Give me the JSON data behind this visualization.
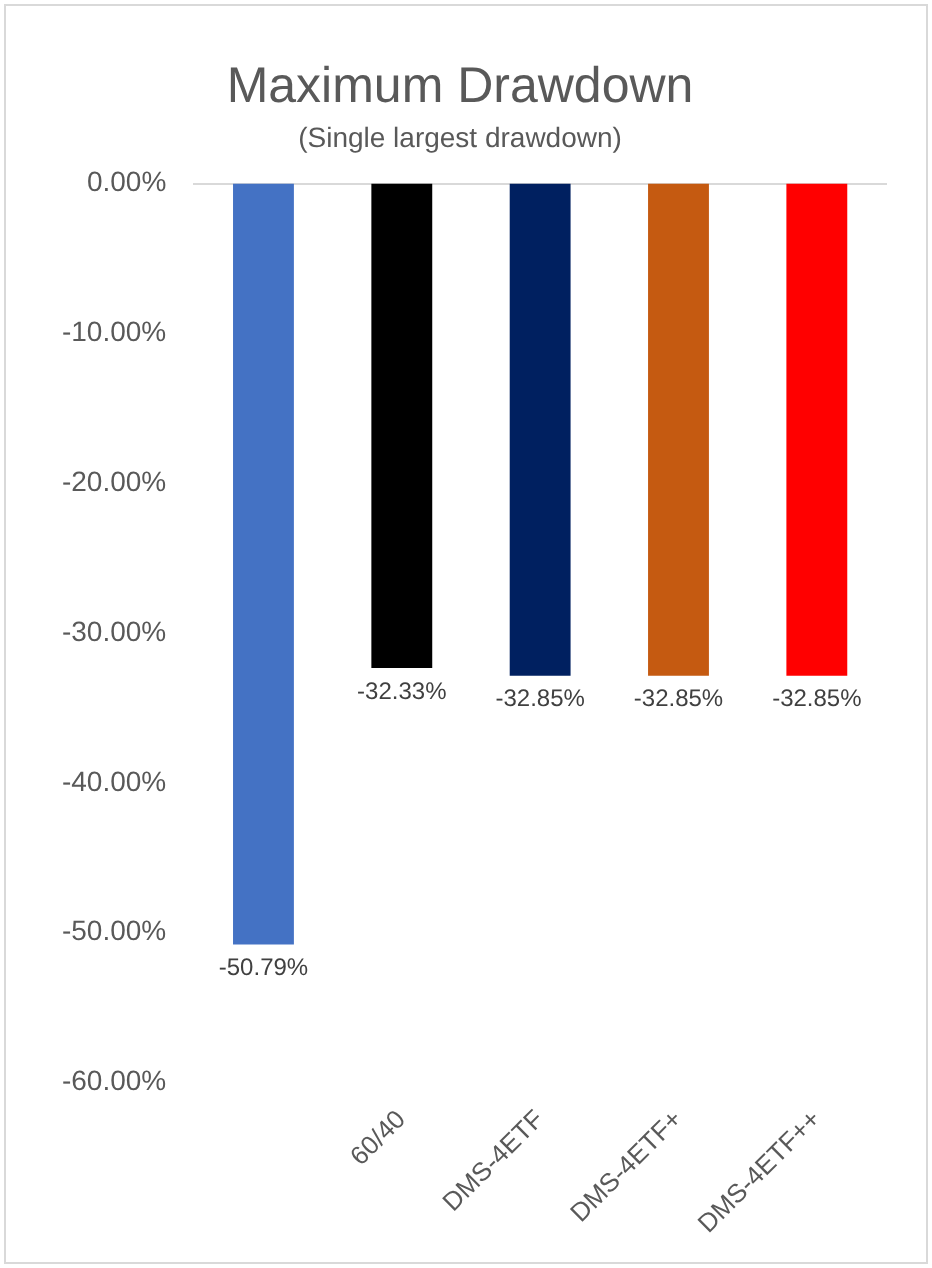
{
  "chart_data": {
    "type": "bar",
    "title": "Maximum Drawdown",
    "subtitle": "(Single largest drawdown)",
    "categories": [
      null,
      "60/40",
      "DMS-4ETF",
      "DMS-4ETF+",
      "DMS-4ETF++"
    ],
    "values": [
      -50.79,
      -32.33,
      -32.85,
      -32.85,
      -32.85
    ],
    "colors": [
      "#4472c4",
      "#000000",
      "#002060",
      "#c55a11",
      "#ff0000"
    ],
    "value_labels": [
      "-50.79%",
      "-32.33%",
      "-32.85%",
      "-32.85%",
      "-32.85%"
    ],
    "ylim": [
      -60,
      0
    ],
    "yticks": [
      {
        "value": 0,
        "label": "0.00%"
      },
      {
        "value": -10,
        "label": "-10.00%"
      },
      {
        "value": -20,
        "label": "-20.00%"
      },
      {
        "value": -30,
        "label": "-30.00%"
      },
      {
        "value": -40,
        "label": "-40.00%"
      },
      {
        "value": -50,
        "label": "-50.00%"
      },
      {
        "value": -60,
        "label": "-60.00%"
      }
    ],
    "grid": false,
    "legend": false
  }
}
